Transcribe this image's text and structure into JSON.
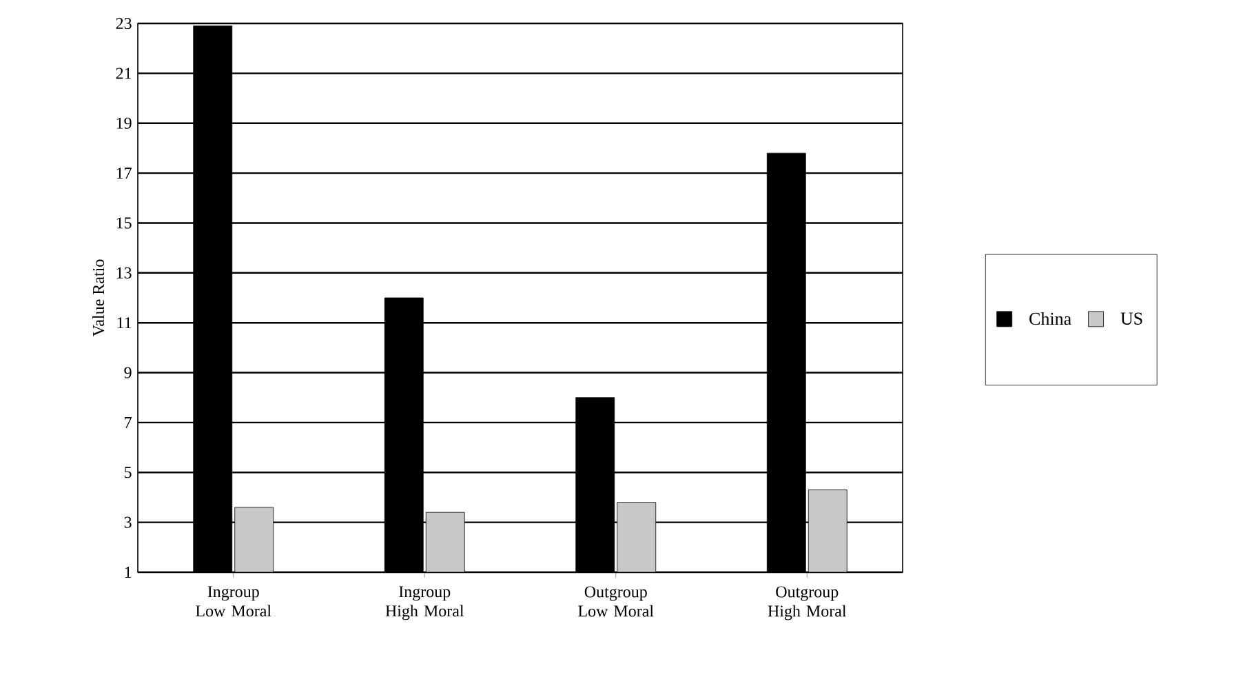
{
  "chart_data": {
    "type": "bar",
    "ylabel": "Value Ratio",
    "categories": [
      "Ingroup Low Moral",
      "Ingroup High Moral",
      "Outgroup Low Moral",
      "Outgroup High Moral"
    ],
    "series": [
      {
        "name": "China",
        "color": "#000000",
        "values": [
          22.9,
          12.0,
          8.0,
          17.8
        ]
      },
      {
        "name": "US",
        "color": "#c8c8c8",
        "values": [
          3.6,
          3.4,
          3.8,
          4.3
        ]
      }
    ],
    "ylim": [
      1,
      23
    ],
    "yticks": [
      1,
      3,
      5,
      7,
      9,
      11,
      13,
      15,
      17,
      19,
      21,
      23
    ],
    "grid": "y",
    "legend": "right"
  }
}
